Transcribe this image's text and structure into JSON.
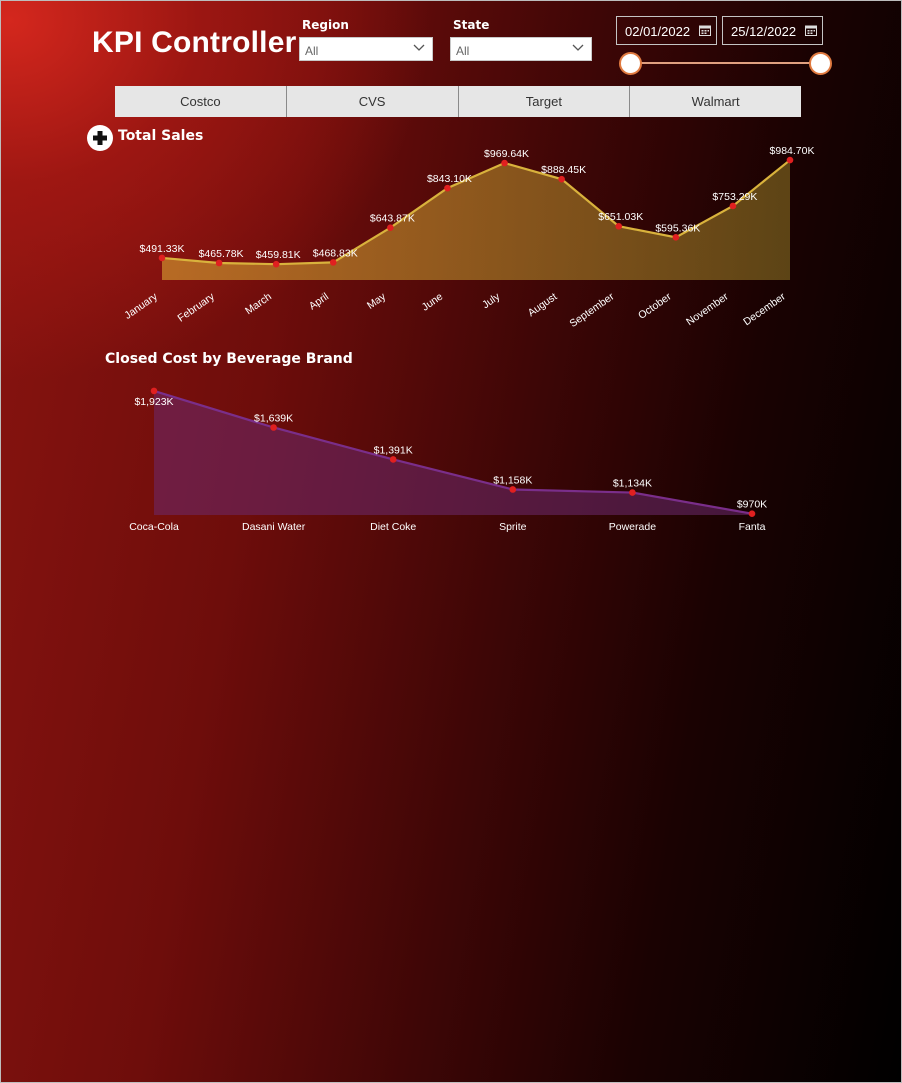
{
  "header": {
    "title": "KPI Controller"
  },
  "filters": {
    "region_label": "Region",
    "region_value": "All",
    "state_label": "State",
    "state_value": "All",
    "date_start": "02/01/2022",
    "date_end": "25/12/2022"
  },
  "tabs": [
    {
      "label": "Costco"
    },
    {
      "label": "CVS"
    },
    {
      "label": "Target"
    },
    {
      "label": "Walmart"
    }
  ],
  "colors": {
    "sales_line": "#d9b23c",
    "sales_fill": "#b58a2a",
    "cost_line": "#7a2e8a",
    "cost_fill": "#6b2a6e",
    "marker": "#e02020",
    "tab_bg": "#e6e6e6",
    "slider_handle_border": "#e07a40"
  },
  "icons": {
    "expand": "plus-circle-icon",
    "dropdown": "chevron-down-icon",
    "calendar": "calendar-icon"
  },
  "chart_data": [
    {
      "type": "area",
      "title": "Total Sales",
      "categories": [
        "January",
        "February",
        "March",
        "April",
        "May",
        "June",
        "July",
        "August",
        "September",
        "October",
        "November",
        "December"
      ],
      "values": [
        491.33,
        465.78,
        459.81,
        468.83,
        643.87,
        843.1,
        969.64,
        888.45,
        651.03,
        595.36,
        753.29,
        984.7
      ],
      "labels": [
        "$491.33K",
        "$465.78K",
        "$459.81K",
        "$468.83K",
        "$643.87K",
        "$843.10K",
        "$969.64K",
        "$888.45K",
        "$651.03K",
        "$595.36K",
        "$753.29K",
        "$984.70K"
      ],
      "unit": "K",
      "grid": false
    },
    {
      "type": "area",
      "title": "Closed Cost by Beverage Brand",
      "categories": [
        "Coca-Cola",
        "Dasani Water",
        "Diet Coke",
        "Sprite",
        "Powerade",
        "Fanta"
      ],
      "values": [
        1923,
        1639,
        1391,
        1158,
        1134,
        970
      ],
      "labels": [
        "$1,923K",
        "$1,639K",
        "$1,391K",
        "$1,158K",
        "$1,134K",
        "$970K"
      ],
      "unit": "K",
      "grid": false
    }
  ]
}
